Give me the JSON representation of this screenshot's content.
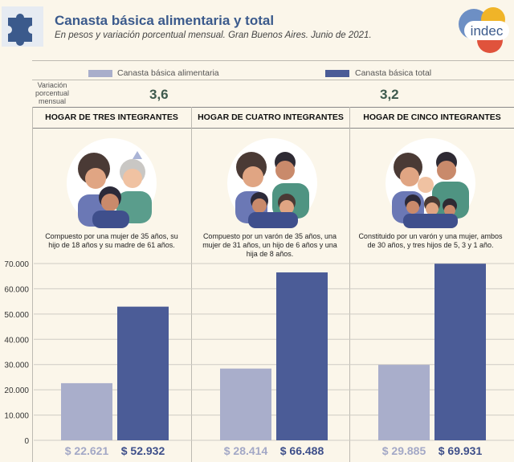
{
  "header": {
    "title": "Canasta básica alimentaria y total",
    "subtitle": "En pesos y variación porcentual mensual. Gran Buenos Aires. Junio de 2021.",
    "logo_text": "indec",
    "puzzle_icon": "puzzle-icon"
  },
  "legend": {
    "alimentaria": "Canasta básica alimentaria",
    "total": "Canasta básica total"
  },
  "variation": {
    "label_line1": "Variación",
    "label_line2": "porcentual",
    "label_line3": "mensual",
    "alimentaria": "3,6",
    "total": "3,2"
  },
  "households": [
    {
      "title": "HOGAR DE TRES INTEGRANTES",
      "description": "Compuesto por una mujer de 35 años, su hijo de 18 años y su madre de 61 años."
    },
    {
      "title": "HOGAR DE CUATRO INTEGRANTES",
      "description": "Compuesto por un varón de 35 años, una mujer de 31 años, un hijo de 6 años y una hija de 8 años."
    },
    {
      "title": "HOGAR DE CINCO INTEGRANTES",
      "description": "Constituido por un varón y una mujer, ambos de 30 años, y tres hijos de 5, 3 y 1 año."
    }
  ],
  "colors": {
    "alimentaria": "#a9aecb",
    "total": "#4b5c97",
    "accent": "#3b5a8c"
  },
  "chart_data": {
    "type": "bar",
    "title": "Canasta básica alimentaria y total",
    "categories": [
      "HOGAR DE TRES INTEGRANTES",
      "HOGAR DE CUATRO INTEGRANTES",
      "HOGAR DE CINCO INTEGRANTES"
    ],
    "series": [
      {
        "name": "Canasta básica alimentaria",
        "values": [
          22621,
          28414,
          29885
        ]
      },
      {
        "name": "Canasta básica total",
        "values": [
          52932,
          66488,
          69931
        ]
      }
    ],
    "value_labels": [
      [
        "$ 22.621",
        "$ 28.414",
        "$ 29.885"
      ],
      [
        "$ 52.932",
        "$ 66.488",
        "$ 69.931"
      ]
    ],
    "yticks": [
      "0",
      "10.000",
      "20.000",
      "30.000",
      "40.000",
      "50.000",
      "60.000",
      "70.000"
    ],
    "ylim": [
      0,
      70000
    ],
    "xlabel": "",
    "ylabel": ""
  }
}
